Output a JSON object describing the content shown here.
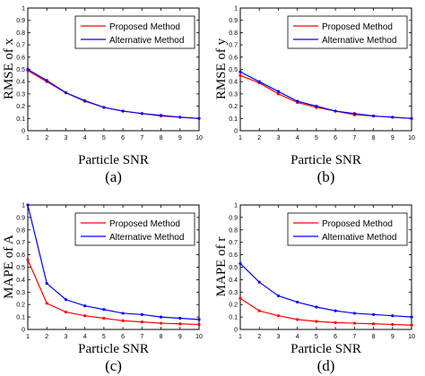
{
  "chart_data": [
    {
      "type": "line",
      "x": [
        1,
        2,
        3,
        4,
        5,
        6,
        7,
        8,
        9,
        10
      ],
      "xticks": [
        "1",
        "2",
        "3",
        "4",
        "5",
        "6",
        "7",
        "8",
        "9",
        "10"
      ],
      "yticks": [
        "0",
        "0.1",
        "0.2",
        "0.3",
        "0.4",
        "0.5",
        "0.6",
        "0.7",
        "0.8",
        "0.9",
        "1"
      ],
      "xlim": [
        1,
        10
      ],
      "ylim": [
        0,
        1
      ],
      "xlabel": "Particle SNR",
      "ylabel": "RMSE of x",
      "caption": "(a)",
      "legend_position": "top-right",
      "grid": false,
      "series": [
        {
          "name": "Proposed Method",
          "color": "#ff0000",
          "values": [
            0.49,
            0.4,
            0.31,
            0.24,
            0.19,
            0.16,
            0.14,
            0.12,
            0.11,
            0.1
          ]
        },
        {
          "name": "Alternative Method",
          "color": "#0000ff",
          "values": [
            0.5,
            0.41,
            0.31,
            0.245,
            0.19,
            0.16,
            0.14,
            0.125,
            0.11,
            0.1
          ]
        }
      ]
    },
    {
      "type": "line",
      "x": [
        1,
        2,
        3,
        4,
        5,
        6,
        7,
        8,
        9,
        10
      ],
      "xticks": [
        "1",
        "2",
        "3",
        "4",
        "5",
        "6",
        "7",
        "8",
        "9",
        "10"
      ],
      "yticks": [
        "0",
        "0.1",
        "0.2",
        "0.3",
        "0.4",
        "0.5",
        "0.6",
        "0.7",
        "0.8",
        "0.9",
        "1"
      ],
      "xlim": [
        1,
        10
      ],
      "ylim": [
        0,
        1
      ],
      "xlabel": "Particle SNR",
      "ylabel": "RMSE of y",
      "caption": "(b)",
      "legend_position": "top-right",
      "grid": false,
      "series": [
        {
          "name": "Proposed Method",
          "color": "#ff0000",
          "values": [
            0.45,
            0.39,
            0.3,
            0.23,
            0.19,
            0.16,
            0.13,
            0.12,
            0.11,
            0.1
          ]
        },
        {
          "name": "Alternative Method",
          "color": "#0000ff",
          "values": [
            0.48,
            0.4,
            0.32,
            0.24,
            0.2,
            0.16,
            0.14,
            0.12,
            0.11,
            0.1
          ]
        }
      ]
    },
    {
      "type": "line",
      "x": [
        1,
        2,
        3,
        4,
        5,
        6,
        7,
        8,
        9,
        10
      ],
      "xticks": [
        "1",
        "2",
        "3",
        "4",
        "5",
        "6",
        "7",
        "8",
        "9",
        "10"
      ],
      "yticks": [
        "0",
        "0.1",
        "0.2",
        "0.3",
        "0.4",
        "0.5",
        "0.6",
        "0.7",
        "0.8",
        "0.9",
        "1"
      ],
      "xlim": [
        1,
        10
      ],
      "ylim": [
        0,
        1
      ],
      "xlabel": "Particle SNR",
      "ylabel": "MAPE of A",
      "caption": "(c)",
      "legend_position": "top-right",
      "grid": false,
      "series": [
        {
          "name": "Proposed Method",
          "color": "#ff0000",
          "values": [
            0.56,
            0.21,
            0.14,
            0.11,
            0.09,
            0.07,
            0.06,
            0.05,
            0.045,
            0.04
          ]
        },
        {
          "name": "Alternative Method",
          "color": "#0000ff",
          "values": [
            1.0,
            0.37,
            0.24,
            0.19,
            0.16,
            0.13,
            0.12,
            0.1,
            0.09,
            0.08
          ]
        }
      ]
    },
    {
      "type": "line",
      "x": [
        1,
        2,
        3,
        4,
        5,
        6,
        7,
        8,
        9,
        10
      ],
      "xticks": [
        "1",
        "2",
        "3",
        "4",
        "5",
        "6",
        "7",
        "8",
        "9",
        "10"
      ],
      "yticks": [
        "0",
        "0.1",
        "0.2",
        "0.3",
        "0.4",
        "0.5",
        "0.6",
        "0.7",
        "0.8",
        "0.9",
        "1"
      ],
      "xlim": [
        1,
        10
      ],
      "ylim": [
        0,
        1
      ],
      "xlabel": "Particle SNR",
      "ylabel": "MAPE of r",
      "caption": "(d)",
      "legend_position": "top-right",
      "grid": false,
      "series": [
        {
          "name": "Proposed Method",
          "color": "#ff0000",
          "values": [
            0.25,
            0.15,
            0.11,
            0.08,
            0.065,
            0.055,
            0.05,
            0.045,
            0.04,
            0.035
          ]
        },
        {
          "name": "Alternative Method",
          "color": "#0000ff",
          "values": [
            0.53,
            0.38,
            0.27,
            0.22,
            0.18,
            0.15,
            0.13,
            0.12,
            0.11,
            0.1
          ]
        }
      ]
    }
  ]
}
